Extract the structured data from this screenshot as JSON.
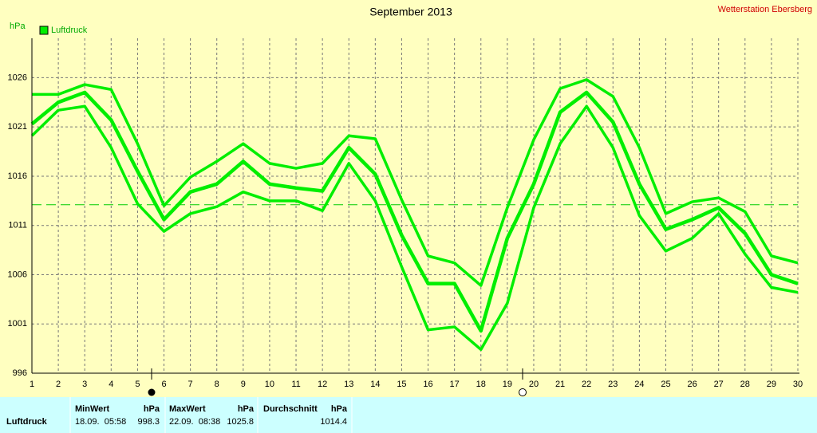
{
  "chart_data": {
    "type": "line",
    "title": "September 2013",
    "station": "Wetterstation Ebersberg",
    "y_label": "hPa",
    "x": [
      1,
      2,
      3,
      4,
      5,
      6,
      7,
      8,
      9,
      10,
      11,
      12,
      13,
      14,
      15,
      16,
      17,
      18,
      19,
      20,
      21,
      22,
      23,
      24,
      25,
      26,
      27,
      28,
      29,
      30
    ],
    "xlim": [
      1,
      30
    ],
    "xticks": [
      1,
      2,
      3,
      4,
      5,
      6,
      7,
      8,
      9,
      10,
      11,
      12,
      13,
      14,
      15,
      16,
      17,
      18,
      19,
      20,
      21,
      22,
      23,
      24,
      25,
      26,
      27,
      28,
      29,
      30
    ],
    "ylim": [
      996,
      1030
    ],
    "yticks": [
      996,
      1001,
      1006,
      1011,
      1016,
      1021,
      1026
    ],
    "grid": true,
    "reference_line": 1013.1,
    "series": [
      {
        "name": "Luftdruck",
        "color": "#00ee00",
        "values": [
          1021.3,
          1023.5,
          1024.5,
          1021.7,
          1016.5,
          1011.6,
          1014.4,
          1015.2,
          1017.5,
          1015.2,
          1014.8,
          1014.5,
          1018.9,
          1016.2,
          1010.0,
          1005.1,
          1005.1,
          1000.3,
          1009.7,
          1015.2,
          1022.5,
          1024.5,
          1021.5,
          1015.2,
          1010.6,
          1011.6,
          1012.8,
          1010.2,
          1006.0,
          1005.1
        ]
      },
      {
        "color": "#00ee00",
        "values": [
          1024.3,
          1024.3,
          1025.3,
          1024.8,
          1019.3,
          1013.0,
          1015.9,
          1017.5,
          1019.3,
          1017.3,
          1016.8,
          1017.3,
          1020.1,
          1019.8,
          1013.6,
          1007.9,
          1007.2,
          1004.9,
          1012.8,
          1019.7,
          1024.9,
          1025.8,
          1024.1,
          1018.9,
          1012.2,
          1013.4,
          1013.8,
          1012.4,
          1007.9,
          1007.2
        ]
      },
      {
        "color": "#00ee00",
        "values": [
          1020.1,
          1022.7,
          1023.1,
          1018.9,
          1013.2,
          1010.4,
          1012.2,
          1012.9,
          1014.4,
          1013.5,
          1013.5,
          1012.5,
          1017.3,
          1013.5,
          1006.8,
          1000.4,
          1000.7,
          998.4,
          1003.1,
          1012.8,
          1019.3,
          1023.1,
          1018.9,
          1012.0,
          1008.4,
          1009.7,
          1012.2,
          1008.1,
          1004.7,
          1004.2
        ]
      }
    ]
  },
  "table": {
    "headers": [
      "MinWert",
      "hPa",
      "MaxWert",
      "hPa",
      "Durchschnitt",
      "hPa"
    ],
    "row_label": "Luftdruck",
    "min_time": "18.09.  05:58",
    "min_value": "998.3",
    "max_time": "22.09.  08:38",
    "max_value": "1025.8",
    "average": "1014.4"
  }
}
